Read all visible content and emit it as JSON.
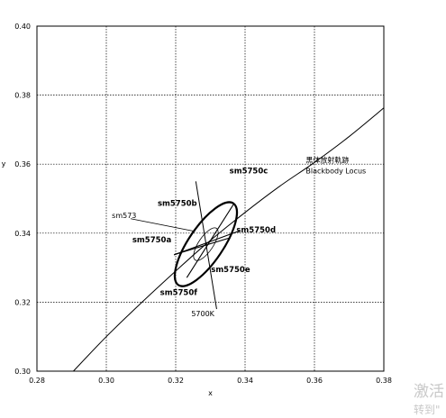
{
  "chart_data": {
    "type": "scatter",
    "title": "",
    "xlabel": "x",
    "ylabel": "y",
    "xlim": [
      0.28,
      0.38
    ],
    "ylim": [
      0.3,
      0.4
    ],
    "x_ticks": [
      "0.28",
      "0.30",
      "0.32",
      "0.34",
      "0.36",
      "0.38"
    ],
    "y_ticks": [
      "0.30",
      "0.32",
      "0.34",
      "0.36",
      "0.38",
      "0.40"
    ],
    "grid": "dotted",
    "series": [
      {
        "name": "黒体放射軌跡 Blackbody Locus",
        "kind": "line",
        "points": [
          [
            0.2905,
            0.3
          ],
          [
            0.3,
            0.31
          ],
          [
            0.31,
            0.3197
          ],
          [
            0.32,
            0.329
          ],
          [
            0.3287,
            0.3368
          ],
          [
            0.34,
            0.346
          ],
          [
            0.35,
            0.3536
          ],
          [
            0.36,
            0.3605
          ],
          [
            0.37,
            0.368
          ],
          [
            0.38,
            0.3763
          ]
        ]
      }
    ],
    "center": {
      "x": 0.3287,
      "y": 0.3368
    },
    "outer_ellipse": {
      "rx_major": 0.0142,
      "rx_minor": 0.005,
      "angle_deg": 56
    },
    "inner_ellipse": {
      "rx_major": 0.0055,
      "rx_minor": 0.0021,
      "angle_deg": 56
    },
    "divider_lines": [
      {
        "from": [
          0.3232,
          0.3271
        ],
        "to": [
          0.3367,
          0.3484
        ]
      },
      {
        "from": [
          0.3196,
          0.3338
        ],
        "to": [
          0.3358,
          0.3387
        ]
      },
      {
        "from": [
          0.3195,
          0.3337
        ],
        "to": [
          0.3382,
          0.3406
        ]
      }
    ],
    "isotemperature_line": {
      "label": "5700K",
      "from": [
        0.3258,
        0.355
      ],
      "to": [
        0.3318,
        0.318
      ]
    },
    "annotations": [
      {
        "text": "sm5750c",
        "x": 0.3355,
        "y": 0.3573,
        "bold": true
      },
      {
        "text": "sm5750b",
        "x": 0.3148,
        "y": 0.3479,
        "bold": true
      },
      {
        "text": "sm573",
        "x": 0.3016,
        "y": 0.3444,
        "bold": false
      },
      {
        "text": "sm5750d",
        "x": 0.3375,
        "y": 0.3402,
        "bold": true
      },
      {
        "text": "sm5750a",
        "x": 0.3075,
        "y": 0.3373,
        "bold": true
      },
      {
        "text": "sm5750e",
        "x": 0.3302,
        "y": 0.3287,
        "bold": true
      },
      {
        "text": "sm5750f",
        "x": 0.3155,
        "y": 0.322,
        "bold": true
      },
      {
        "text": "5700K",
        "x": 0.3245,
        "y": 0.3159,
        "bold": false
      }
    ],
    "leader_line": {
      "label": "sm573",
      "from": [
        0.307,
        0.3442
      ],
      "to": [
        0.3256,
        0.3405
      ]
    },
    "locus_label": {
      "line1": "黒体放射軌跡",
      "line2": "Blackbody Locus",
      "x": 0.3575,
      "y": 0.3605
    }
  },
  "watermark": {
    "line1": "激活",
    "line2": "转到\""
  }
}
